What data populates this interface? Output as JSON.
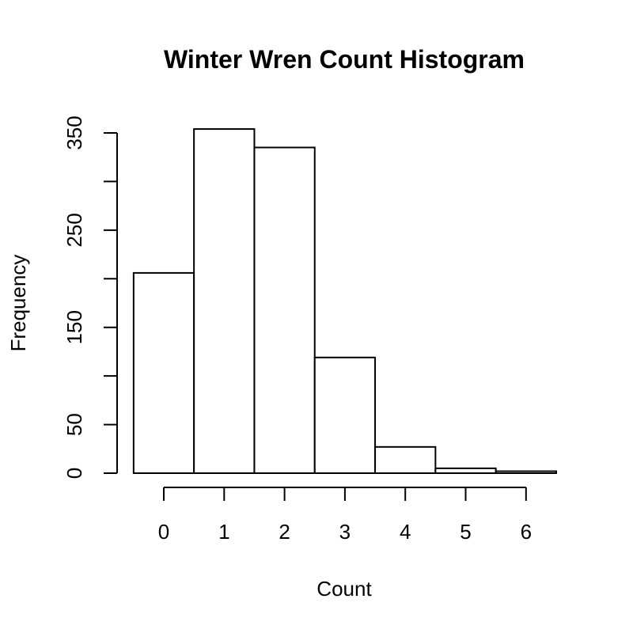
{
  "chart_data": {
    "type": "bar",
    "title": "Winter Wren Count Histogram",
    "xlabel": "Count",
    "ylabel": "Frequency",
    "categories": [
      "0",
      "1",
      "2",
      "3",
      "4",
      "5",
      "6"
    ],
    "values": [
      206,
      354,
      335,
      119,
      27,
      5,
      2
    ],
    "bin_edges": [
      -0.5,
      0.5,
      1.5,
      2.5,
      3.5,
      4.5,
      5.5,
      6.5
    ],
    "x_ticks": [
      0,
      1,
      2,
      3,
      4,
      5,
      6
    ],
    "x_tick_labels": [
      "0",
      "1",
      "2",
      "3",
      "4",
      "5",
      "6"
    ],
    "y_ticks": [
      0,
      50,
      100,
      150,
      200,
      250,
      300,
      350
    ],
    "y_tick_labels": [
      "0",
      "50",
      "",
      "150",
      "",
      "250",
      "",
      "350"
    ],
    "xlim": [
      -0.5,
      6.5
    ],
    "ylim": [
      0,
      354
    ],
    "grid": false,
    "bar_fill": "#ffffff",
    "bar_stroke": "#000000"
  }
}
